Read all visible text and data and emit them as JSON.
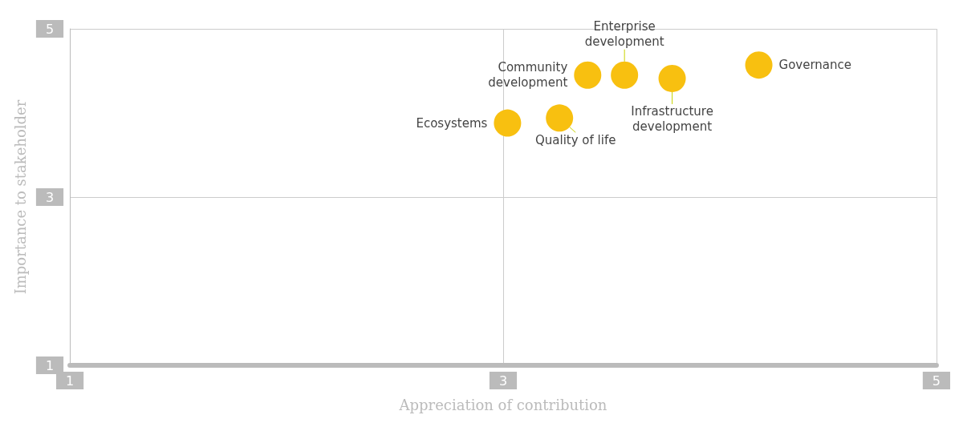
{
  "chart_data": {
    "type": "scatter",
    "xlabel": "Appreciation of contribution",
    "ylabel": "Importance to stakeholder",
    "xlim": [
      1,
      5
    ],
    "xticks": [
      1,
      3,
      5
    ],
    "ylim": [
      1,
      5
    ],
    "yticks": [
      1,
      3,
      5
    ],
    "grid": true,
    "legend": false,
    "marker": "circle",
    "series": [
      {
        "name": "Ecosystems",
        "color": "#f8c010",
        "x": [
          3.02
        ],
        "values": [
          3.88
        ]
      },
      {
        "name": "Quality of life",
        "color": "#f8c010",
        "x": [
          3.26
        ],
        "values": [
          3.94
        ]
      },
      {
        "name": "Community\ndevelopment",
        "color": "#f8c010",
        "x": [
          3.39
        ],
        "values": [
          4.45
        ]
      },
      {
        "name": "Enterprise\ndevelopment",
        "color": "#f8c010",
        "x": [
          3.56
        ],
        "values": [
          4.45
        ]
      },
      {
        "name": "Infrastructure\ndevelopment",
        "color": "#f8c010",
        "x": [
          3.78
        ],
        "values": [
          4.41
        ]
      },
      {
        "name": "Governance",
        "color": "#f8c010",
        "x": [
          4.18
        ],
        "values": [
          4.57
        ]
      }
    ]
  }
}
